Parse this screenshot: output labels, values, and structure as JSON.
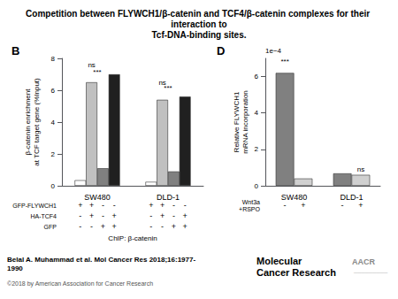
{
  "title": "Competition between FLYWCH1/β-catenin and TCF4/β-catenin complexes for their interaction to\nTcf-DNA-binding sites.",
  "annotations": [
    {
      "text": "Belal A. Muhammad et al. Mol Cancer Res 2018;16:1977-\n1990",
      "color": "#000000"
    },
    {
      "text": "©2018 by American Association for Cancer Research",
      "color": "#555555"
    },
    {
      "text": "Molecular\nCancer Research",
      "color": "#000000"
    },
    {
      "text": "AACR",
      "color": "#888888"
    },
    {
      "text": "─────────",
      "color": "#aaaaaa"
    }
  ],
  "chart_data": [
    {
      "type": "bar",
      "title": "B",
      "categories": [
        "SW480",
        "DLD-1"
      ],
      "series": [
        {
          "color": "#ffffff",
          "values": [
            0.35,
            0.25
          ]
        },
        {
          "color": "#c0c0c0",
          "values": [
            6.5,
            5.4
          ],
          "annotations": [
            {
              "text": "ns",
              "category": "SW480",
              "y": 7.3
            },
            {
              "text": "ns",
              "category": "DLD-1",
              "y": 6.2
            }
          ]
        },
        {
          "color": "#808080",
          "values": [
            1.1,
            0.9
          ]
        },
        {
          "color": "#202020",
          "values": [
            7.0,
            5.6
          ]
        }
      ],
      "ylabel": "β-catenin enrichment\nat TCF target gene (%Input)",
      "xlabel": "ChIP: β-catenin",
      "ylim": [
        0,
        8
      ],
      "yticks": [
        0,
        2,
        4,
        6,
        8
      ],
      "grid": false,
      "annotations": [
        {
          "text": "***",
          "category": "SW480",
          "y": 6.85
        },
        {
          "text": "***",
          "category": "DLD-1",
          "y": 5.85
        }
      ],
      "conditions": [
        {
          "label": "GFP-FLYWCH1",
          "values": [
            "+",
            "+",
            "-",
            "-"
          ]
        },
        {
          "label": "HA-TCF4",
          "values": [
            "-",
            "+",
            "-",
            "+"
          ]
        },
        {
          "label": "GFP",
          "values": [
            "-",
            "-",
            "+",
            "+"
          ]
        }
      ]
    },
    {
      "type": "bar",
      "title": "D",
      "categories": [
        "SW480",
        "DLD-1"
      ],
      "series": [
        {
          "color": "#808080",
          "values": [
            0.00062,
            6.8e-05
          ],
          "annotations": [
            {
              "text": "***",
              "category": "SW480",
              "y": 0.00066
            }
          ]
        },
        {
          "color": "#d0d0d0",
          "values": [
            4e-05,
            6e-05
          ],
          "annotations": [
            {
              "text": "ns",
              "category": "DLD-1",
              "y": 6.4e-05
            }
          ]
        }
      ],
      "ylabel": "Relative FLYWCH1\nmRNA incorporation",
      "ylim": [
        0,
        0.0007
      ],
      "yticks": [
        0,
        {
          "value": 0.0002,
          "label": "2"
        },
        {
          "value": 0.0004,
          "label": "4"
        },
        {
          "value": 0.0006,
          "label": "6"
        }
      ],
      "grid": false,
      "annotations": [
        {
          "text": "1e−4"
        }
      ],
      "conditions": [
        {
          "label": "Wnt3a\n+RSPO",
          "values": [
            "-",
            "+"
          ]
        }
      ]
    }
  ]
}
